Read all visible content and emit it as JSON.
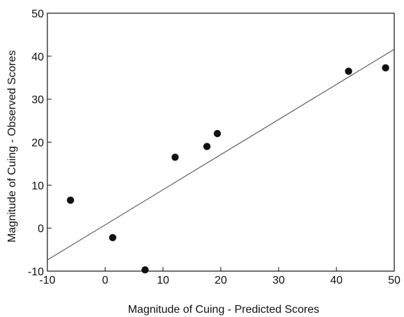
{
  "chart_data": {
    "type": "scatter",
    "xlabel": "Magnitude of Cuing - Predicted Scores",
    "ylabel": "Magnitude of Cuing - Observed Scores",
    "xlim": [
      -10,
      50
    ],
    "ylim": [
      -10,
      50
    ],
    "xticks": [
      -10,
      0,
      10,
      20,
      30,
      40,
      50
    ],
    "yticks": [
      -10,
      0,
      10,
      20,
      30,
      40,
      50
    ],
    "xtick_labels": [
      "-10",
      "0",
      "10",
      "20",
      "30",
      "40",
      "50"
    ],
    "ytick_labels": [
      "-10",
      "0",
      "10",
      "20",
      "30",
      "40",
      "50"
    ],
    "points": [
      {
        "x": -6,
        "y": 6.5
      },
      {
        "x": 1.3,
        "y": -2.2
      },
      {
        "x": 6.9,
        "y": -9.7
      },
      {
        "x": 12.1,
        "y": 16.5
      },
      {
        "x": 17.6,
        "y": 19
      },
      {
        "x": 19.4,
        "y": 22
      },
      {
        "x": 42.1,
        "y": 36.5
      },
      {
        "x": 48.5,
        "y": 37.3
      }
    ],
    "fit_line": {
      "x": [
        -10,
        50
      ],
      "y": [
        -7.4,
        41.6
      ]
    },
    "grid": false,
    "legend": "none",
    "colors": {
      "marker": "#111111",
      "line": "#444444",
      "axis": "#111111"
    }
  }
}
